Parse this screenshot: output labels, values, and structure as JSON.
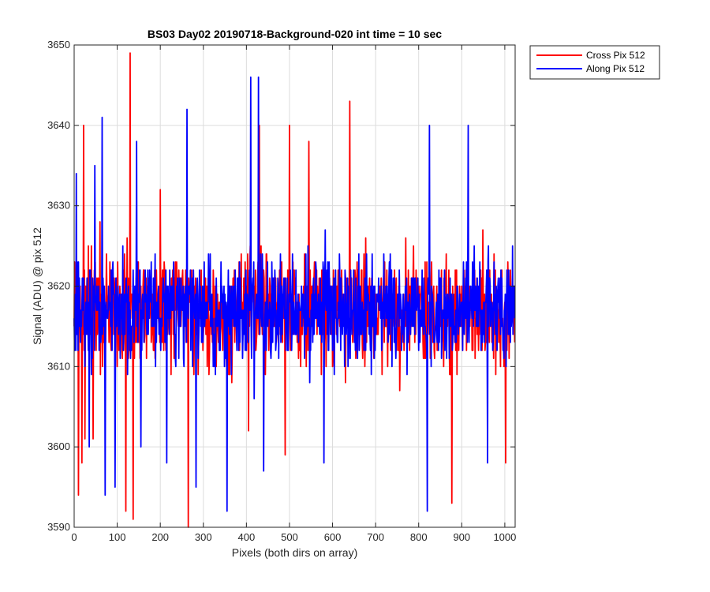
{
  "chart_data": {
    "type": "line",
    "title": "BS03 Day02 20190718-Background-020 int time = 10 sec",
    "xlabel": "Pixels (both dirs on array)",
    "ylabel": "Signal (ADU) @ pix 512",
    "xlim": [
      0,
      1024
    ],
    "ylim": [
      3590,
      3650
    ],
    "xticks": [
      0,
      100,
      200,
      300,
      400,
      500,
      600,
      700,
      800,
      900,
      1000
    ],
    "yticks": [
      3590,
      3600,
      3610,
      3620,
      3630,
      3640,
      3650
    ],
    "xtick_labels": [
      "0",
      "100",
      "200",
      "300",
      "400",
      "500",
      "600",
      "700",
      "800",
      "900",
      "1000"
    ],
    "ytick_labels": [
      "3590",
      "3600",
      "3610",
      "3620",
      "3630",
      "3640",
      "3650"
    ],
    "grid": true,
    "legend_position": "outside top-right",
    "series": [
      {
        "name": "Cross Pix 512",
        "color": "#ff0000",
        "noise": {
          "n": 1024,
          "mean": 3617,
          "spread": 7,
          "seed": 71
        },
        "peaks": [
          [
            10,
            3594
          ],
          [
            18,
            3598
          ],
          [
            22,
            3640
          ],
          [
            25,
            3601
          ],
          [
            44,
            3601
          ],
          [
            60,
            3628
          ],
          [
            120,
            3592
          ],
          [
            130,
            3649
          ],
          [
            137,
            3591
          ],
          [
            200,
            3632
          ],
          [
            265,
            3590
          ],
          [
            405,
            3602
          ],
          [
            430,
            3640
          ],
          [
            490,
            3599
          ],
          [
            500,
            3640
          ],
          [
            545,
            3638
          ],
          [
            600,
            3610
          ],
          [
            640,
            3643
          ],
          [
            877,
            3593
          ],
          [
            1002,
            3598
          ]
        ]
      },
      {
        "name": "Along Pix 512",
        "color": "#0000ff",
        "noise": {
          "n": 1024,
          "mean": 3617,
          "spread": 7,
          "seed": 113
        },
        "peaks": [
          [
            5,
            3634
          ],
          [
            35,
            3600
          ],
          [
            48,
            3635
          ],
          [
            65,
            3641
          ],
          [
            72,
            3594
          ],
          [
            95,
            3595
          ],
          [
            145,
            3638
          ],
          [
            155,
            3600
          ],
          [
            215,
            3598
          ],
          [
            262,
            3642
          ],
          [
            283,
            3595
          ],
          [
            355,
            3592
          ],
          [
            410,
            3646
          ],
          [
            418,
            3606
          ],
          [
            428,
            3646
          ],
          [
            440,
            3597
          ],
          [
            580,
            3598
          ],
          [
            820,
            3592
          ],
          [
            825,
            3640
          ],
          [
            915,
            3640
          ],
          [
            960,
            3598
          ]
        ]
      }
    ]
  }
}
